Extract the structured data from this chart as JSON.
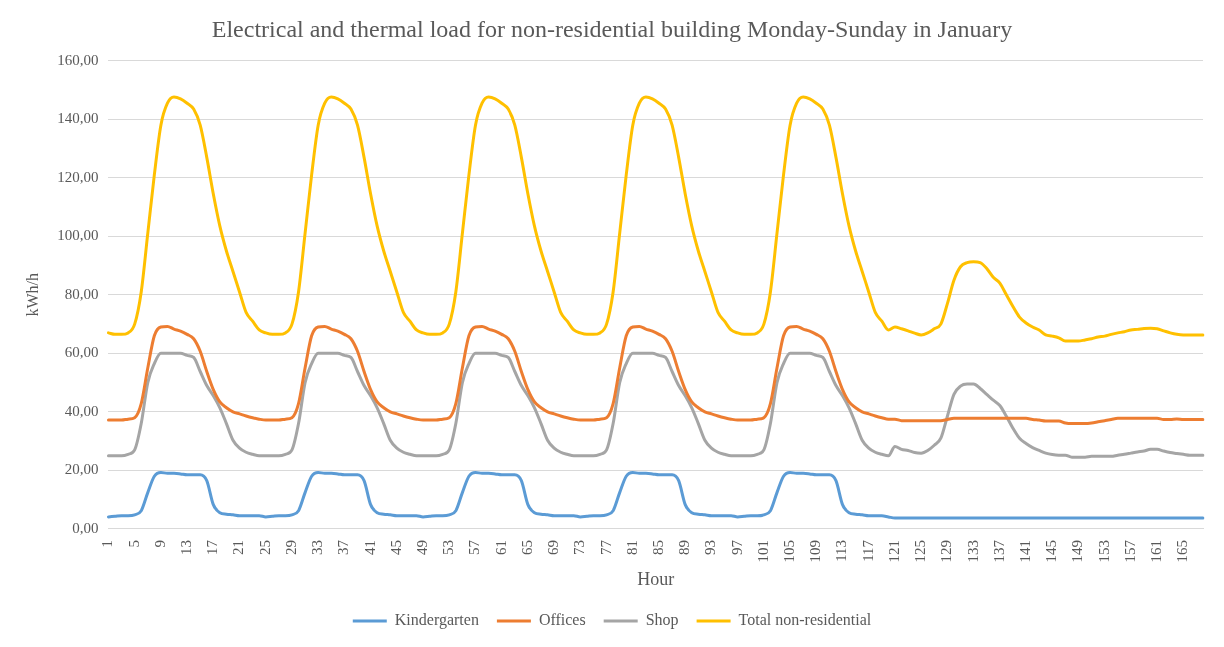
{
  "chart_data": {
    "type": "line",
    "title": "Electrical and thermal load for non-residential building Monday-Sunday in January",
    "xlabel": "Hour",
    "ylabel": "kWh/h",
    "categories": [
      "1",
      null,
      null,
      null,
      "5",
      null,
      null,
      null,
      "9",
      null,
      null,
      null,
      "13",
      null,
      null,
      null,
      "17",
      null,
      null,
      null,
      "21",
      null,
      null,
      null,
      "25",
      null,
      null,
      null,
      "29",
      null,
      null,
      null,
      "33",
      null,
      null,
      null,
      "37",
      null,
      null,
      null,
      "41",
      null,
      null,
      null,
      "45",
      null,
      null,
      null,
      "49",
      null,
      null,
      null,
      "53",
      null,
      null,
      null,
      "57",
      null,
      null,
      null,
      "61",
      null,
      null,
      null,
      "65",
      null,
      null,
      null,
      "69",
      null,
      null,
      null,
      "73",
      null,
      null,
      null,
      "77",
      null,
      null,
      null,
      "81",
      null,
      null,
      null,
      "85",
      null,
      null,
      null,
      "89",
      null,
      null,
      null,
      "93",
      null,
      null,
      null,
      "97",
      null,
      null,
      null,
      "101",
      null,
      null,
      null,
      "105",
      null,
      null,
      null,
      "109",
      null,
      null,
      null,
      "113",
      null,
      null,
      null,
      "117",
      null,
      null,
      null,
      "121",
      null,
      null,
      null,
      "125",
      null,
      null,
      null,
      "129",
      null,
      null,
      null,
      "133",
      null,
      null,
      null,
      "137",
      null,
      null,
      null,
      "141",
      null,
      null,
      null,
      "145",
      null,
      null,
      null,
      "149",
      null,
      null,
      null,
      "153",
      null,
      null,
      null,
      "157",
      null,
      null,
      null,
      "161",
      null,
      null,
      null,
      "165",
      null,
      null,
      null
    ],
    "series": [
      {
        "name": "Kindergarten",
        "color": "#5b9bd5",
        "values": [
          4.1,
          4.3,
          4.5,
          4.5,
          4.8,
          6.2,
          12.4,
          18,
          19.3,
          19,
          19,
          18.8,
          18.5,
          18.5,
          18.5,
          16.5,
          8.3,
          5.5,
          5,
          4.8,
          4.5,
          4.5,
          4.5,
          4.5,
          4.1,
          4.3,
          4.5,
          4.5,
          4.8,
          6.2,
          12.4,
          18,
          19.3,
          19,
          19,
          18.8,
          18.5,
          18.5,
          18.5,
          16.5,
          8.3,
          5.5,
          5,
          4.8,
          4.5,
          4.5,
          4.5,
          4.5,
          4.1,
          4.3,
          4.5,
          4.5,
          4.8,
          6.2,
          12.4,
          18,
          19.3,
          19,
          19,
          18.8,
          18.5,
          18.5,
          18.5,
          16.5,
          8.3,
          5.5,
          5,
          4.8,
          4.5,
          4.5,
          4.5,
          4.5,
          4.1,
          4.3,
          4.5,
          4.5,
          4.8,
          6.2,
          12.4,
          18,
          19.3,
          19,
          19,
          18.8,
          18.5,
          18.5,
          18.5,
          16.5,
          8.3,
          5.5,
          5,
          4.8,
          4.5,
          4.5,
          4.5,
          4.5,
          4.1,
          4.3,
          4.5,
          4.5,
          4.8,
          6.2,
          12.4,
          18,
          19.3,
          19,
          19,
          18.8,
          18.5,
          18.5,
          18.5,
          16.5,
          8.3,
          5.5,
          5,
          4.8,
          4.5,
          4.5,
          4.5,
          4.1,
          3.7,
          3.7,
          3.7,
          3.7,
          3.7,
          3.7,
          3.7,
          3.7,
          3.7,
          3.7,
          3.7,
          3.7,
          3.7,
          3.7,
          3.7,
          3.7,
          3.7,
          3.7,
          3.7,
          3.7,
          3.7,
          3.7,
          3.7,
          3.7,
          3.7,
          3.7,
          3.7,
          3.7,
          3.7,
          3.7,
          3.7,
          3.7,
          3.7,
          3.7,
          3.7,
          3.7,
          3.7,
          3.7,
          3.7,
          3.7,
          3.7,
          3.7,
          3.7,
          3.7,
          3.7,
          3.7,
          3.7,
          3.7
        ]
      },
      {
        "name": "Offices",
        "color": "#ed7d31",
        "values": [
          37.2,
          37.2,
          37.2,
          37.5,
          38,
          42.8,
          55,
          66,
          69,
          69.2,
          68.3,
          67.6,
          66.5,
          65,
          60.7,
          53.8,
          47.6,
          43.4,
          41.4,
          40,
          39.3,
          38.6,
          38,
          37.5,
          37.2,
          37.2,
          37.2,
          37.5,
          38,
          42.8,
          55,
          66,
          69,
          69.2,
          68.3,
          67.6,
          66.5,
          65,
          60.7,
          53.8,
          47.6,
          43.4,
          41.4,
          40,
          39.3,
          38.6,
          38,
          37.5,
          37.2,
          37.2,
          37.2,
          37.5,
          38,
          42.8,
          55,
          66,
          69,
          69.2,
          68.3,
          67.6,
          66.5,
          65,
          60.7,
          53.8,
          47.6,
          43.4,
          41.4,
          40,
          39.3,
          38.6,
          38,
          37.5,
          37.2,
          37.2,
          37.2,
          37.5,
          38,
          42.8,
          55,
          66,
          69,
          69.2,
          68.3,
          67.6,
          66.5,
          65,
          60.7,
          53.8,
          47.6,
          43.4,
          41.4,
          40,
          39.3,
          38.6,
          38,
          37.5,
          37.2,
          37.2,
          37.2,
          37.5,
          38,
          42.8,
          55,
          66,
          69,
          69.2,
          68.3,
          67.6,
          66.5,
          65,
          60.7,
          53.8,
          47.6,
          43.4,
          41.4,
          40,
          39.3,
          38.6,
          38,
          37.5,
          37.5,
          37,
          37,
          37,
          37,
          37,
          37,
          37,
          37.4,
          37.8,
          37.8,
          37.8,
          37.8,
          37.8,
          37.8,
          37.8,
          37.8,
          37.8,
          37.8,
          37.8,
          37.8,
          37.4,
          37.2,
          36.9,
          36.9,
          36.9,
          36.2,
          36,
          36,
          36,
          36.2,
          36.6,
          37,
          37.4,
          37.8,
          37.8,
          37.8,
          37.8,
          37.8,
          37.8,
          37.8,
          37.4,
          37.4,
          37.6,
          37.4,
          37.4,
          37.4,
          37.4
        ]
      },
      {
        "name": "Shop",
        "color": "#a5a5a5",
        "values": [
          25,
          25,
          25,
          25.5,
          27,
          36,
          50,
          56.5,
          60,
          60,
          60,
          60,
          59.3,
          58.6,
          53.8,
          49,
          45.5,
          41.4,
          36,
          30.3,
          27.6,
          26.2,
          25.5,
          25,
          25,
          25,
          25,
          25.5,
          27,
          36,
          50,
          56.5,
          60,
          60,
          60,
          60,
          59.3,
          58.6,
          53.8,
          49,
          45.5,
          41.4,
          36,
          30.3,
          27.6,
          26.2,
          25.5,
          25,
          25,
          25,
          25,
          25.5,
          27,
          36,
          50,
          56.5,
          60,
          60,
          60,
          60,
          59.3,
          58.6,
          53.8,
          49,
          45.5,
          41.4,
          36,
          30.3,
          27.6,
          26.2,
          25.5,
          25,
          25,
          25,
          25,
          25.5,
          27,
          36,
          50,
          56.5,
          60,
          60,
          60,
          60,
          59.3,
          58.6,
          53.8,
          49,
          45.5,
          41.4,
          36,
          30.3,
          27.6,
          26.2,
          25.5,
          25,
          25,
          25,
          25,
          25.5,
          27,
          36,
          50,
          56.5,
          60,
          60,
          60,
          60,
          59.3,
          58.6,
          53.8,
          49,
          45.5,
          41.4,
          36,
          30.3,
          27.6,
          26.2,
          25.5,
          25,
          28.2,
          27.2,
          26.8,
          26.1,
          25.9,
          26.8,
          28.6,
          31,
          38.5,
          46,
          48.8,
          49.5,
          49.5,
          48,
          46,
          44,
          42.2,
          38.5,
          34.4,
          31,
          29.2,
          27.8,
          26.8,
          25.9,
          25.4,
          25.2,
          25.2,
          24.5,
          24.5,
          24.5,
          24.8,
          24.8,
          24.8,
          24.8,
          25.2,
          25.5,
          25.9,
          26.3,
          26.6,
          27.2,
          27.2,
          26.6,
          26.1,
          25.8,
          25.5,
          25.2,
          25.2,
          25.2
        ]
      },
      {
        "name": "Total non-residential",
        "color": "#ffc000",
        "values": [
          67,
          66.5,
          66.5,
          67,
          70,
          81,
          101,
          121,
          138,
          145.5,
          147.6,
          147,
          145.5,
          143.5,
          138,
          127,
          114.5,
          103.5,
          95,
          88,
          81,
          74,
          71,
          68,
          67,
          66.5,
          66.5,
          67,
          70,
          81,
          101,
          121,
          138,
          145.5,
          147.6,
          147,
          145.5,
          143.5,
          138,
          127,
          114.5,
          103.5,
          95,
          88,
          81,
          74,
          71,
          68,
          67,
          66.5,
          66.5,
          67,
          70,
          81,
          101,
          121,
          138,
          145.5,
          147.6,
          147,
          145.5,
          143.5,
          138,
          127,
          114.5,
          103.5,
          95,
          88,
          81,
          74,
          71,
          68,
          67,
          66.5,
          66.5,
          67,
          70,
          81,
          101,
          121,
          138,
          145.5,
          147.6,
          147,
          145.5,
          143.5,
          138,
          127,
          114.5,
          103.5,
          95,
          88,
          81,
          74,
          71,
          68,
          67,
          66.5,
          66.5,
          67,
          70,
          81,
          101,
          121,
          138,
          145.5,
          147.6,
          147,
          145.5,
          143.5,
          138,
          127,
          114.5,
          103.5,
          95,
          88,
          81,
          74,
          71,
          68,
          69,
          68.4,
          67.7,
          66.9,
          66.3,
          67,
          68.4,
          70,
          77,
          85,
          89.6,
          91,
          91.3,
          91,
          89,
          86,
          84,
          80,
          76,
          72.4,
          70.4,
          69,
          68,
          66.3,
          65.9,
          65.3,
          64.2,
          64.2,
          64.2,
          64.6,
          65,
          65.6,
          65.9,
          66.5,
          67,
          67.4,
          68,
          68.2,
          68.5,
          68.6,
          68.4,
          67.7,
          67,
          66.5,
          66.3,
          66.3,
          66.3,
          66.3
        ]
      }
    ],
    "ylim": [
      0,
      160
    ],
    "yticks": [
      {
        "value": 0,
        "label": "0,00"
      },
      {
        "value": 20,
        "label": "20,00"
      },
      {
        "value": 40,
        "label": "40,00"
      },
      {
        "value": 60,
        "label": "60,00"
      },
      {
        "value": 80,
        "label": "80,00"
      },
      {
        "value": 100,
        "label": "100,00"
      },
      {
        "value": 120,
        "label": "120,00"
      },
      {
        "value": 140,
        "label": "140,00"
      },
      {
        "value": 160,
        "label": "160,00"
      }
    ],
    "grid": "y",
    "legend": "bottom",
    "marker": "none",
    "line_style": "solid"
  }
}
